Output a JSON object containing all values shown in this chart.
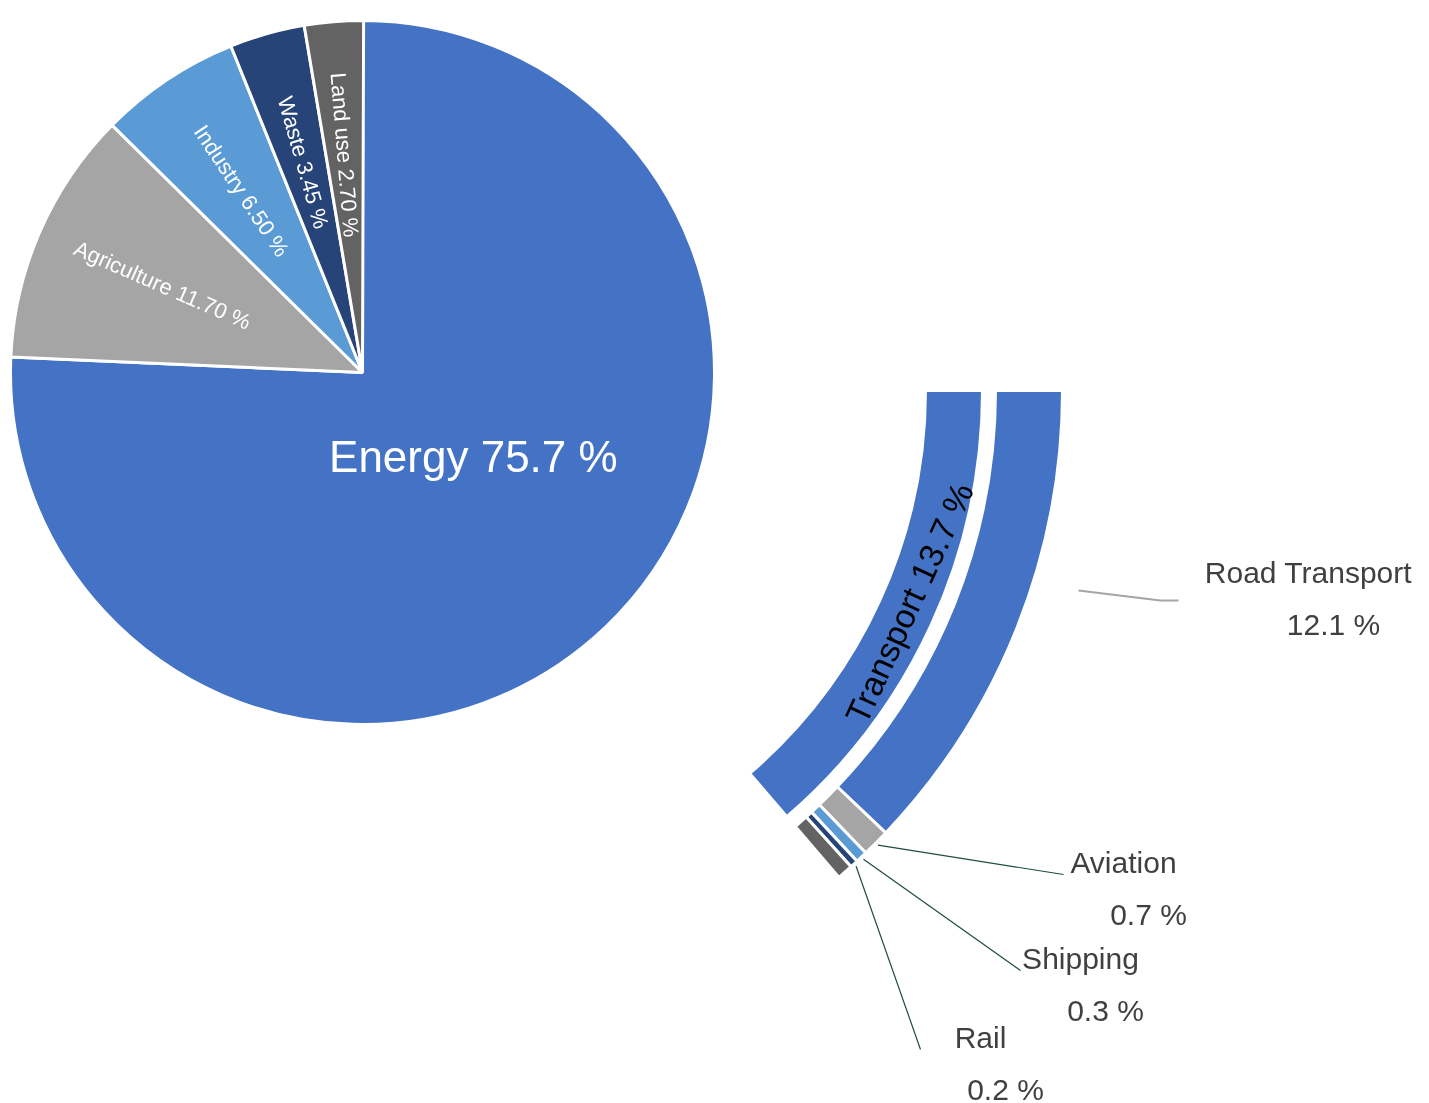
{
  "chart_data": [
    {
      "type": "pie",
      "categories": [
        "Energy",
        "Agriculture",
        "Industry",
        "Waste",
        "Land use"
      ],
      "values": [
        75.7,
        11.7,
        6.5,
        3.45,
        2.7
      ],
      "colors": [
        "#4472c4",
        "#a5a5a5",
        "#5b9bd5",
        "#264478",
        "#636363"
      ],
      "value_labels": [
        "75.7 %",
        "11.70 %",
        "6.50 %",
        "3.45 %",
        "2.70 %"
      ]
    },
    {
      "type": "other",
      "categories": [
        "Transport",
        "Road Transport",
        "Aviation",
        "Shipping",
        "Rail",
        null
      ],
      "values": [
        13.7,
        12.1,
        0.7,
        0.3,
        0.2,
        null
      ],
      "colors": [
        "#4472c4",
        "#4472c4",
        "#a5a5a5",
        "#5b9bd5",
        "#264478",
        "#636363"
      ],
      "value_labels": [
        "13.7 %",
        "12.1 %",
        "0.7 %",
        "0.3 %",
        "0.2 %",
        null
      ]
    }
  ]
}
